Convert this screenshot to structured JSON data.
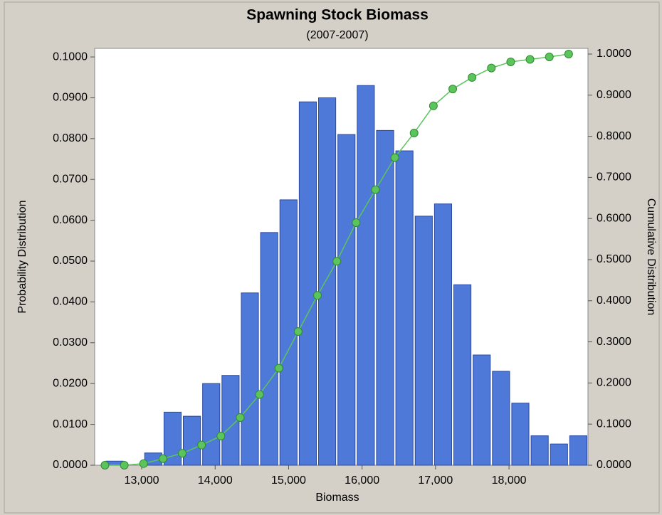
{
  "chart_data": {
    "type": "histogram",
    "title": "Spawning Stock Biomass",
    "subtitle": "(2007-2007)",
    "x_label": "Biomass",
    "y_label": "Probability Distribution",
    "y2_label": "Cumulative Distribution",
    "bins": [
      12500,
      12763,
      13026,
      13289,
      13552,
      13815,
      14078,
      14341,
      14604,
      14867,
      15130,
      15393,
      15656,
      15919,
      16182,
      16445,
      16708,
      16971,
      17234,
      17497,
      17760,
      18023,
      18286,
      18549,
      18812,
      19075
    ],
    "values": [
      0.001,
      0,
      0.003,
      0.013,
      0.012,
      0.02,
      0.022,
      0.0422,
      0.057,
      0.065,
      0.089,
      0.09,
      0.081,
      0.093,
      0.082,
      0.077,
      0.061,
      0.064,
      0.0442,
      0.027,
      0.023,
      0.0152,
      0.0072,
      0.0052,
      0.0072
    ],
    "color": "#4f79d8",
    "cumulative": {
      "axis": "y2",
      "color": "#5cc45c",
      "x": [
        12500,
        12763,
        13026,
        13289,
        13552,
        13815,
        14078,
        14341,
        14604,
        14867,
        15130,
        15393,
        15656,
        15919,
        16182,
        16445,
        16708,
        16971,
        17234,
        17497,
        17760,
        18023,
        18286,
        18549,
        18812
      ],
      "values": [
        0,
        0,
        0.004,
        0.016,
        0.029,
        0.049,
        0.071,
        0.116,
        0.172,
        0.236,
        0.325,
        0.413,
        0.496,
        0.59,
        0.67,
        0.748,
        0.808,
        0.874,
        0.915,
        0.943,
        0.966,
        0.981,
        0.987,
        0.993,
        1.0
      ]
    },
    "xlim": [
      12360,
      19075
    ],
    "xticks": [
      {
        "value": 13000,
        "label": "13,000"
      },
      {
        "value": 14000,
        "label": "14,000"
      },
      {
        "value": 15000,
        "label": "15,000"
      },
      {
        "value": 16000,
        "label": "16,000"
      },
      {
        "value": 17000,
        "label": "17,000"
      },
      {
        "value": 18000,
        "label": "18,000"
      }
    ],
    "ylim": [
      0,
      0.1021
    ],
    "yticks": [
      {
        "value": 0,
        "label": "0.0000"
      },
      {
        "value": 0.01,
        "label": "0.0100"
      },
      {
        "value": 0.02,
        "label": "0.0200"
      },
      {
        "value": 0.03,
        "label": "0.0300"
      },
      {
        "value": 0.04,
        "label": "0.0400"
      },
      {
        "value": 0.05,
        "label": "0.0500"
      },
      {
        "value": 0.06,
        "label": "0.0600"
      },
      {
        "value": 0.07,
        "label": "0.0700"
      },
      {
        "value": 0.08,
        "label": "0.0800"
      },
      {
        "value": 0.09,
        "label": "0.0900"
      },
      {
        "value": 0.1,
        "label": "0.1000"
      }
    ],
    "y2lim": [
      0,
      1.0138
    ],
    "y2ticks": [
      {
        "value": 0,
        "label": "0.0000"
      },
      {
        "value": 0.1,
        "label": "0.1000"
      },
      {
        "value": 0.2,
        "label": "0.2000"
      },
      {
        "value": 0.3,
        "label": "0.3000"
      },
      {
        "value": 0.4,
        "label": "0.4000"
      },
      {
        "value": 0.5,
        "label": "0.5000"
      },
      {
        "value": 0.6,
        "label": "0.6000"
      },
      {
        "value": 0.7,
        "label": "0.7000"
      },
      {
        "value": 0.8,
        "label": "0.8000"
      },
      {
        "value": 0.9,
        "label": "0.9000"
      },
      {
        "value": 1,
        "label": "1.0000"
      }
    ]
  }
}
